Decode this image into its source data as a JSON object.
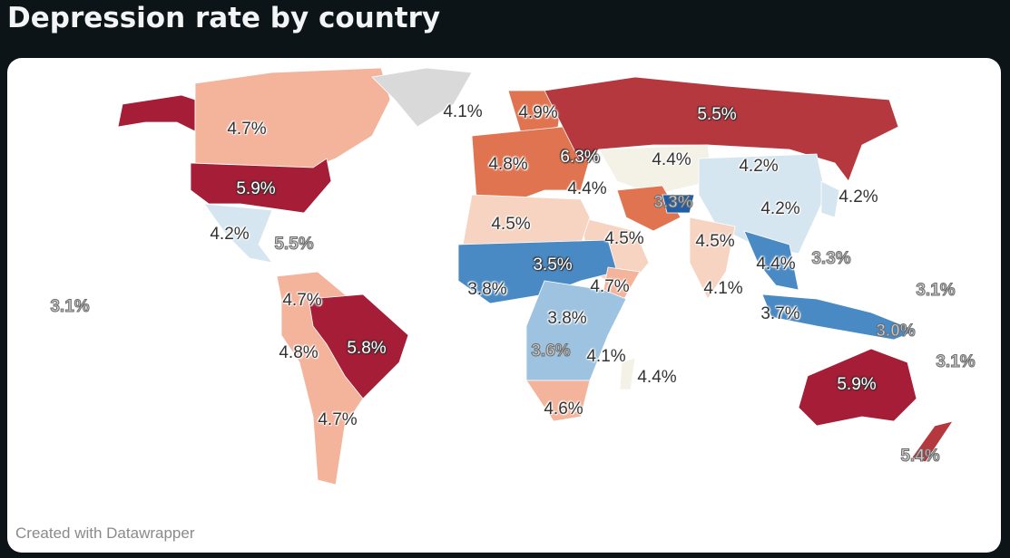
{
  "title": "Depression rate by country",
  "credit": "Created with Datawrapper",
  "colors": {
    "highest": "#a51d36",
    "high": "#b5383f",
    "mid_high": "#e07450",
    "mid": "#f4b39b",
    "neutral_warm": "#f7d3c1",
    "neutral": "#f4f1e6",
    "low_light": "#d6e6f0",
    "low": "#9dc3e0",
    "lower": "#4a8ac4",
    "lowest": "#1f5fa6",
    "no_data": "#d9d9d9"
  },
  "labels": [
    {
      "value": "4.7%",
      "style": "normal"
    },
    {
      "value": "5.9%",
      "style": "light"
    },
    {
      "value": "4.2%",
      "style": "normal"
    },
    {
      "value": "5.5%",
      "style": "faint"
    },
    {
      "value": "3.1%",
      "style": "faint"
    },
    {
      "value": "4.7%",
      "style": "normal"
    },
    {
      "value": "5.8%",
      "style": "light"
    },
    {
      "value": "4.8%",
      "style": "normal"
    },
    {
      "value": "4.7%",
      "style": "normal"
    },
    {
      "value": "4.1%",
      "style": "normal"
    },
    {
      "value": "4.9%",
      "style": "normal"
    },
    {
      "value": "5.5%",
      "style": "light"
    },
    {
      "value": "6.3%",
      "style": "light"
    },
    {
      "value": "4.8%",
      "style": "normal"
    },
    {
      "value": "4.4%",
      "style": "normal"
    },
    {
      "value": "4.2%",
      "style": "normal"
    },
    {
      "value": "4.4%",
      "style": "normal"
    },
    {
      "value": "3.3%",
      "style": "faint"
    },
    {
      "value": "4.2%",
      "style": "normal"
    },
    {
      "value": "4.2%",
      "style": "normal"
    },
    {
      "value": "4.5%",
      "style": "normal"
    },
    {
      "value": "4.5%",
      "style": "normal"
    },
    {
      "value": "4.5%",
      "style": "normal"
    },
    {
      "value": "3.5%",
      "style": "light"
    },
    {
      "value": "4.4%",
      "style": "normal"
    },
    {
      "value": "3.3%",
      "style": "faint"
    },
    {
      "value": "3.8%",
      "style": "normal"
    },
    {
      "value": "4.7%",
      "style": "normal"
    },
    {
      "value": "4.1%",
      "style": "normal"
    },
    {
      "value": "3.1%",
      "style": "faint"
    },
    {
      "value": "3.7%",
      "style": "normal"
    },
    {
      "value": "3.8%",
      "style": "normal"
    },
    {
      "value": "3.0%",
      "style": "faint"
    },
    {
      "value": "3.6%",
      "style": "faint"
    },
    {
      "value": "4.1%",
      "style": "normal"
    },
    {
      "value": "3.1%",
      "style": "faint"
    },
    {
      "value": "4.4%",
      "style": "normal"
    },
    {
      "value": "5.9%",
      "style": "light"
    },
    {
      "value": "4.6%",
      "style": "normal"
    },
    {
      "value": "5.4%",
      "style": "faint"
    }
  ]
}
